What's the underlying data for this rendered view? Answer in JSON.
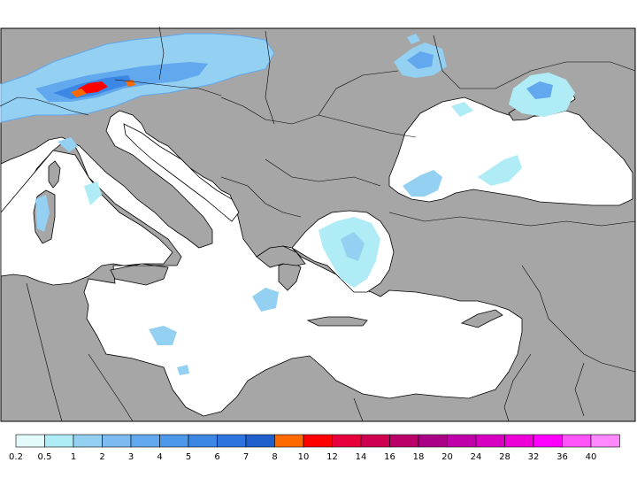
{
  "colors": {
    "land": "#a6a6a6",
    "sea": "#ffffff",
    "border": "#000000"
  },
  "legend": {
    "labels": [
      "0.2",
      "0.5",
      "1",
      "2",
      "3",
      "4",
      "5",
      "6",
      "7",
      "8",
      "10",
      "12",
      "14",
      "16",
      "18",
      "20",
      "24",
      "28",
      "32",
      "36",
      "40"
    ],
    "colors": [
      "#e4fbfb",
      "#b0ecf5",
      "#94d0f2",
      "#7cbaf0",
      "#61a8ee",
      "#4e98ea",
      "#3c86e4",
      "#2d74de",
      "#2060cc",
      "#ff6a00",
      "#ff0000",
      "#e8003c",
      "#d00050",
      "#bb006a",
      "#aa0086",
      "#c000a8",
      "#d800c0",
      "#ee00d8",
      "#ff00ff",
      "#ff55f8",
      "#ff88ff"
    ]
  }
}
